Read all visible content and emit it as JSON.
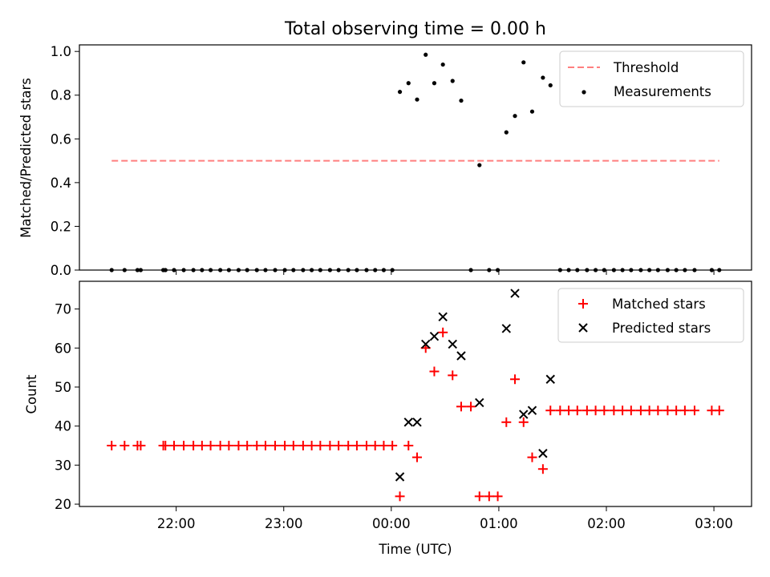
{
  "chart_data": [
    {
      "type": "scatter",
      "title": "Total observing time = 0.00 h",
      "xlabel": "",
      "ylabel": "Matched/Predicted stars",
      "ylim": [
        0,
        1.03
      ],
      "yticks": [
        0.0,
        0.2,
        0.4,
        0.6,
        0.8,
        1.0
      ],
      "ytick_labels": [
        "0.0",
        "0.2",
        "0.4",
        "0.6",
        "0.8",
        "1.0"
      ],
      "grid": false,
      "legend": "top-right",
      "threshold": {
        "name": "Threshold",
        "value": 0.5,
        "x_start": -2.6,
        "x_end": 3.05,
        "color": "#ff7f7f"
      },
      "measurements": {
        "name": "Measurements",
        "color": "#000000",
        "x": [
          -2.6,
          -2.48,
          -2.36,
          -2.33,
          -2.12,
          -2.1,
          -2.02,
          -1.93,
          -1.84,
          -1.76,
          -1.68,
          -1.59,
          -1.51,
          -1.42,
          -1.34,
          -1.25,
          -1.17,
          -1.08,
          -0.99,
          -0.91,
          -0.82,
          -0.74,
          -0.66,
          -0.57,
          -0.49,
          -0.4,
          -0.32,
          -0.23,
          -0.15,
          -0.07,
          0.01,
          0.08,
          0.16,
          0.24,
          0.32,
          0.4,
          0.48,
          0.57,
          0.65,
          0.74,
          0.82,
          0.91,
          0.99,
          1.07,
          1.15,
          1.23,
          1.31,
          1.41,
          1.48,
          1.57,
          1.65,
          1.73,
          1.82,
          1.9,
          1.98,
          2.07,
          2.15,
          2.23,
          2.32,
          2.4,
          2.48,
          2.57,
          2.65,
          2.73,
          2.82,
          2.98,
          3.05
        ],
        "y": [
          0,
          0,
          0,
          0,
          0,
          0,
          0,
          0,
          0,
          0,
          0,
          0,
          0,
          0,
          0,
          0,
          0,
          0,
          0,
          0,
          0,
          0,
          0,
          0,
          0,
          0,
          0,
          0,
          0,
          0,
          0,
          0.815,
          0.855,
          0.78,
          0.985,
          0.855,
          0.94,
          0.865,
          0.775,
          0,
          0.48,
          0,
          0,
          0.63,
          0.705,
          0.95,
          0.725,
          0.88,
          0.845,
          0,
          0,
          0,
          0,
          0,
          0,
          0,
          0,
          0,
          0,
          0,
          0,
          0,
          0,
          0,
          0,
          0,
          0
        ]
      }
    },
    {
      "type": "scatter",
      "title": "",
      "xlabel": "Time (UTC)",
      "ylabel": "Count",
      "ylim": [
        19.4,
        77.1
      ],
      "yticks": [
        20,
        30,
        40,
        50,
        60,
        70
      ],
      "ytick_labels": [
        "20",
        "30",
        "40",
        "50",
        "60",
        "70"
      ],
      "xlim": [
        -2.9,
        3.35
      ],
      "xticks": [
        -2,
        -1,
        0,
        1,
        2,
        3
      ],
      "xtick_labels": [
        "22:00",
        "23:00",
        "00:00",
        "01:00",
        "02:00",
        "03:00"
      ],
      "grid": false,
      "legend": "top-right",
      "series": [
        {
          "name": "Matched stars",
          "marker": "plus",
          "color": "#ff0000",
          "x": [
            -2.6,
            -2.48,
            -2.36,
            -2.33,
            -2.12,
            -2.1,
            -2.02,
            -1.93,
            -1.84,
            -1.76,
            -1.68,
            -1.59,
            -1.51,
            -1.42,
            -1.34,
            -1.25,
            -1.17,
            -1.08,
            -0.99,
            -0.91,
            -0.82,
            -0.74,
            -0.66,
            -0.57,
            -0.49,
            -0.4,
            -0.32,
            -0.23,
            -0.15,
            -0.07,
            0.01,
            0.08,
            0.16,
            0.24,
            0.32,
            0.4,
            0.48,
            0.57,
            0.65,
            0.74,
            0.82,
            0.91,
            0.99,
            1.07,
            1.15,
            1.23,
            1.31,
            1.41,
            1.48,
            1.57,
            1.65,
            1.73,
            1.82,
            1.9,
            1.98,
            2.07,
            2.15,
            2.23,
            2.32,
            2.4,
            2.48,
            2.57,
            2.65,
            2.73,
            2.82,
            2.98,
            3.05
          ],
          "y": [
            35,
            35,
            35,
            35,
            35,
            35,
            35,
            35,
            35,
            35,
            35,
            35,
            35,
            35,
            35,
            35,
            35,
            35,
            35,
            35,
            35,
            35,
            35,
            35,
            35,
            35,
            35,
            35,
            35,
            35,
            35,
            22,
            35,
            32,
            60,
            54,
            64,
            53,
            45,
            45,
            22,
            22,
            22,
            41,
            52,
            41,
            32,
            29,
            44,
            44,
            44,
            44,
            44,
            44,
            44,
            44,
            44,
            44,
            44,
            44,
            44,
            44,
            44,
            44,
            44,
            44,
            44
          ]
        },
        {
          "name": "Predicted stars",
          "marker": "x",
          "color": "#000000",
          "x": [
            0.08,
            0.16,
            0.24,
            0.32,
            0.4,
            0.48,
            0.57,
            0.65,
            0.82,
            1.07,
            1.15,
            1.23,
            1.31,
            1.41,
            1.48
          ],
          "y": [
            27,
            41,
            41,
            61,
            63,
            68,
            61,
            58,
            46,
            65,
            74,
            43,
            44,
            33,
            52
          ]
        }
      ]
    }
  ]
}
